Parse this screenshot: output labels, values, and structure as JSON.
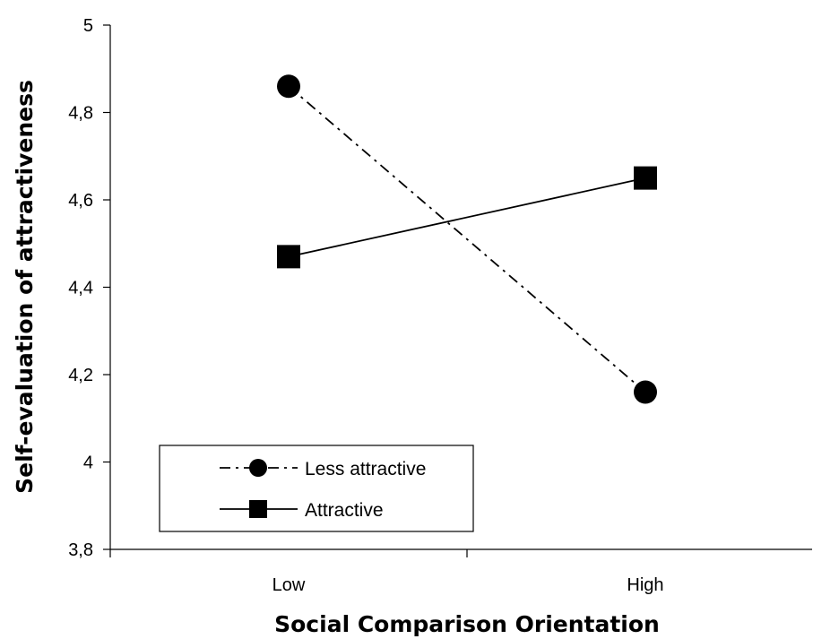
{
  "chart_data": {
    "type": "line",
    "title": "",
    "xlabel": "Social Comparison Orientation",
    "ylabel": "Self-evaluation of attractiveness",
    "categories": [
      "Low",
      "High"
    ],
    "ylim": [
      3.8,
      5
    ],
    "yticks": [
      "3,8",
      "4",
      "4,2",
      "4,4",
      "4,6",
      "4,8",
      "5"
    ],
    "ytick_values": [
      3.8,
      4.0,
      4.2,
      4.4,
      4.6,
      4.8,
      5.0
    ],
    "grid": false,
    "legend_position": "bottom-left",
    "series": [
      {
        "name": "Less attractive",
        "values": [
          4.86,
          4.16
        ],
        "marker": "circle",
        "line_style": "dash-dot",
        "color": "#000000"
      },
      {
        "name": "Attractive",
        "values": [
          4.47,
          4.65
        ],
        "marker": "square",
        "line_style": "solid",
        "color": "#000000"
      }
    ]
  }
}
